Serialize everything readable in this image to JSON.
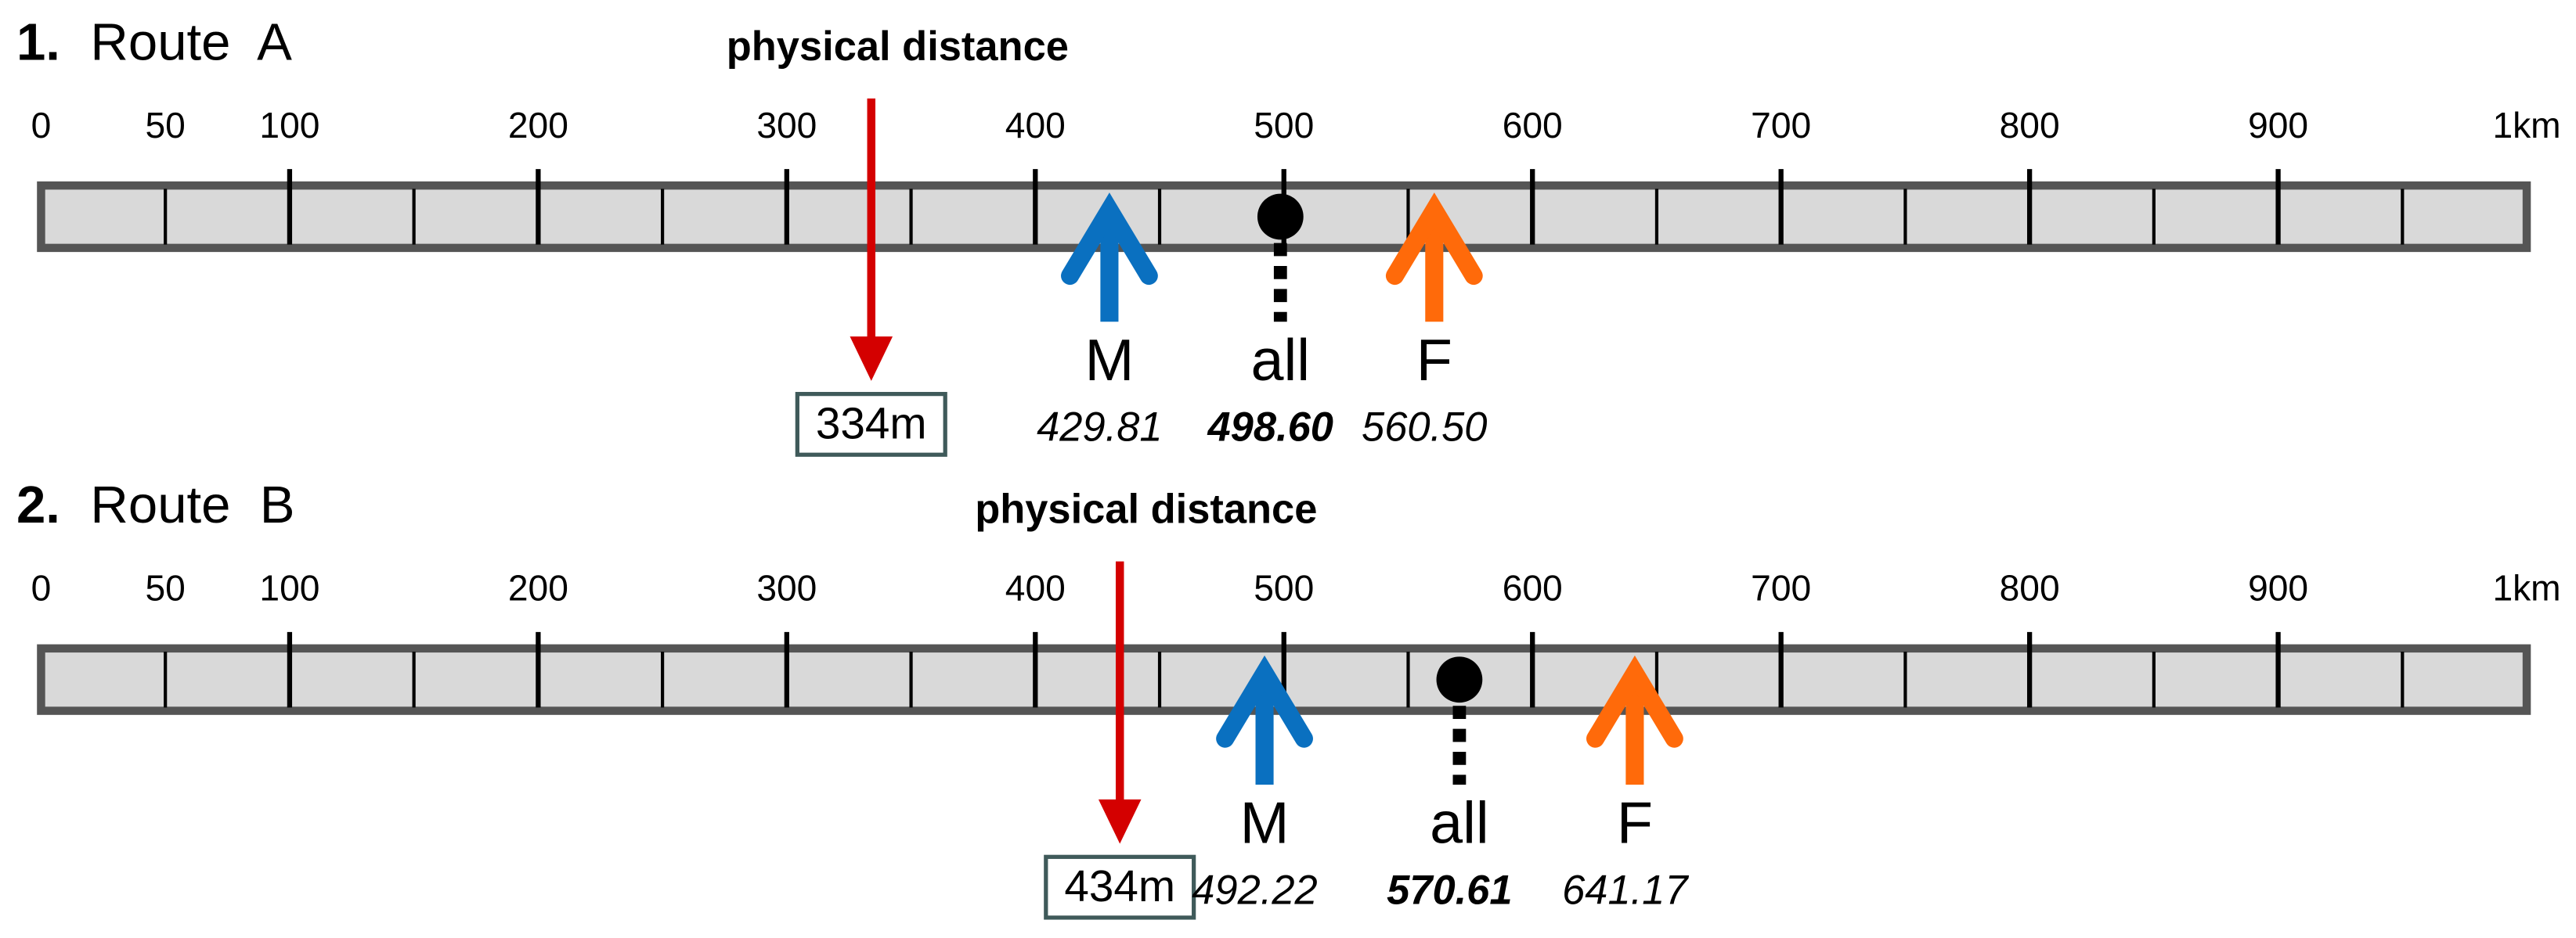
{
  "scale": {
    "xlim": [
      0,
      1000
    ],
    "ticks": [
      0,
      50,
      100,
      200,
      300,
      400,
      500,
      600,
      700,
      800,
      900,
      {
        "value": 1000,
        "label": "1km"
      }
    ],
    "minor_ticks": [
      150,
      250,
      350,
      450,
      550,
      650,
      750,
      850,
      950
    ]
  },
  "routes": [
    {
      "number": "1.",
      "name": "Route  A",
      "physical": {
        "label": "physical distance",
        "value": 334,
        "value_label": "334m",
        "color": "#d40000"
      },
      "markers": [
        {
          "name": "M",
          "value": 429.81,
          "value_label": "429.81",
          "color": "#0a70c0",
          "shape": "arrow"
        },
        {
          "name": "all",
          "value": 498.6,
          "value_label": "498.60",
          "color": "#000000",
          "shape": "dot"
        },
        {
          "name": "F",
          "value": 560.5,
          "value_label": "560.50",
          "color": "#ff6a0a",
          "shape": "arrow"
        }
      ]
    },
    {
      "number": "2.",
      "name": "Route  B",
      "physical": {
        "label": "physical distance",
        "value": 434,
        "value_label": "434m",
        "color": "#d40000"
      },
      "markers": [
        {
          "name": "M",
          "value": 492.22,
          "value_label": "492.22",
          "color": "#0a70c0",
          "shape": "arrow"
        },
        {
          "name": "all",
          "value": 570.61,
          "value_label": "570.61",
          "color": "#000000",
          "shape": "dot"
        },
        {
          "name": "F",
          "value": 641.17,
          "value_label": "641.17",
          "color": "#ff6a0a",
          "shape": "arrow"
        }
      ]
    }
  ]
}
